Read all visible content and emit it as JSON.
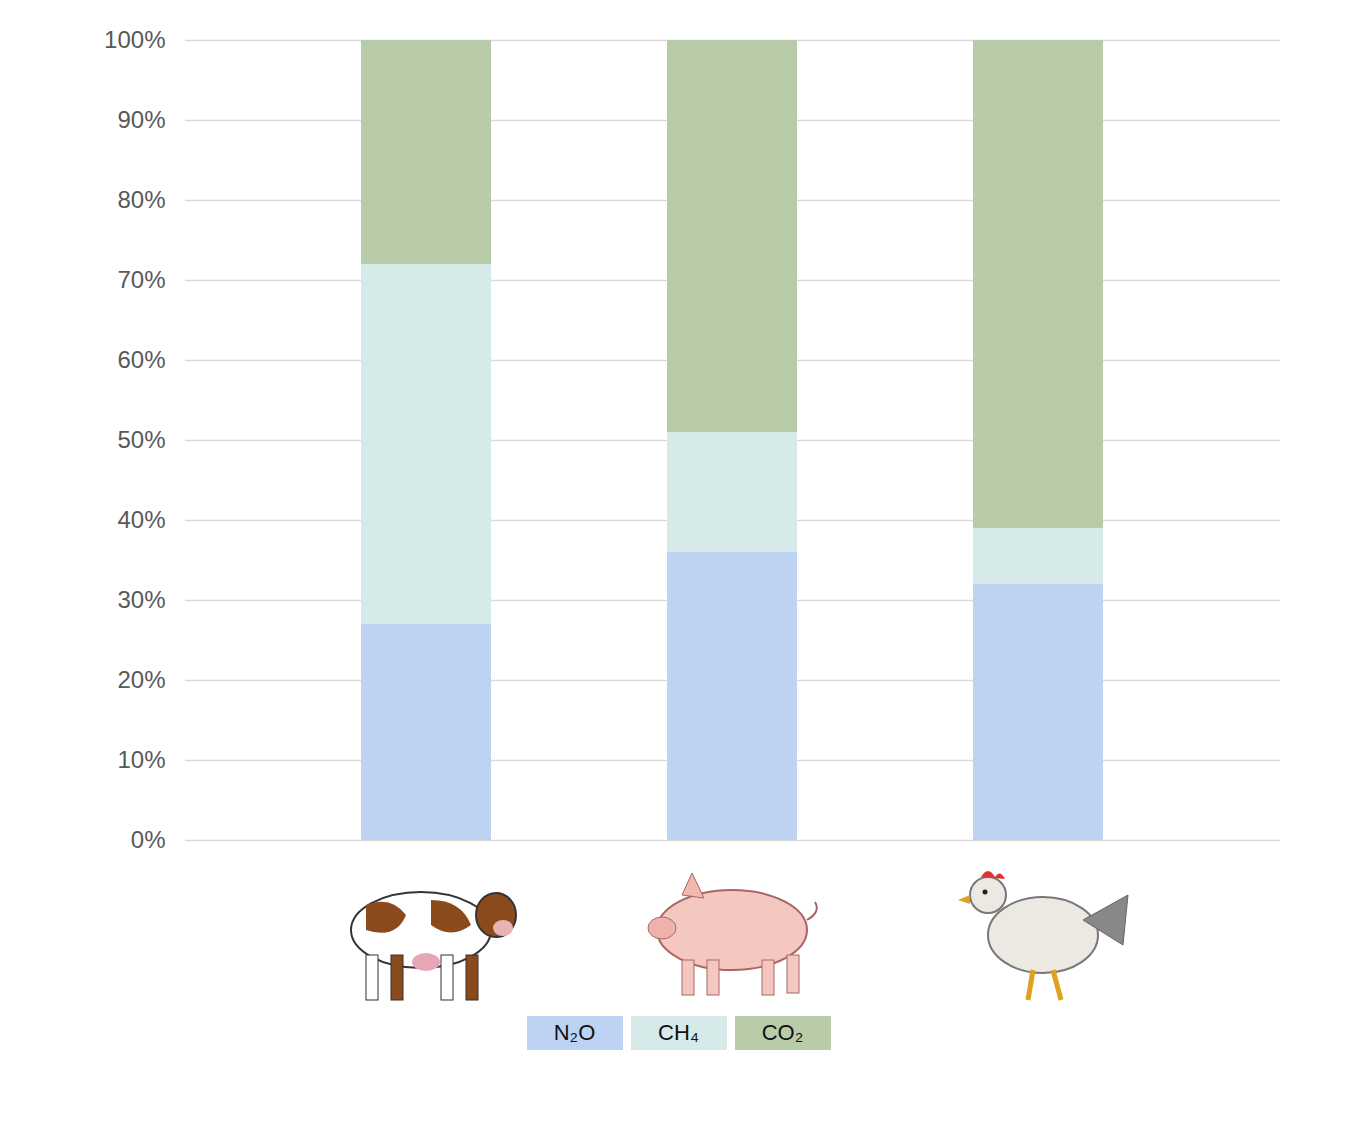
{
  "chart_data": {
    "type": "bar",
    "stacked": true,
    "categories": [
      null,
      null,
      null
    ],
    "series": [
      {
        "name": "N₂O",
        "color": "#bed3f2",
        "values": [
          27,
          36,
          32
        ]
      },
      {
        "name": "CH₄",
        "color": "#d6eaea",
        "values": [
          45,
          15,
          7
        ]
      },
      {
        "name": "CO₂",
        "color": "#b9cca9",
        "values": [
          28,
          49,
          61
        ]
      }
    ],
    "ylim": [
      0,
      100
    ],
    "yticks": [
      {
        "value": 0,
        "label": "0%"
      },
      {
        "value": 10,
        "label": "10%"
      },
      {
        "value": 20,
        "label": "20%"
      },
      {
        "value": 30,
        "label": "30%"
      },
      {
        "value": 40,
        "label": "40%"
      },
      {
        "value": 50,
        "label": "50%"
      },
      {
        "value": 60,
        "label": "60%"
      },
      {
        "value": 70,
        "label": "70%"
      },
      {
        "value": 80,
        "label": "80%"
      },
      {
        "value": 90,
        "label": "90%"
      },
      {
        "value": 100,
        "label": "100%"
      }
    ],
    "grid": true,
    "legend": "bottom"
  }
}
